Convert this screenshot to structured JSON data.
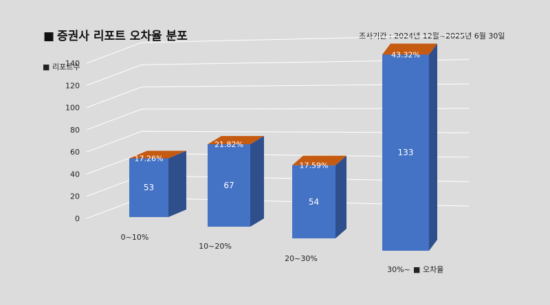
{
  "chart_data": {
    "type": "bar",
    "title": "증권사 리포트 오차율 분포",
    "subtitle": "조사기간 : 2024년 12월~2025년 6월 30일",
    "ylabel": "리포트수",
    "xlabel": "오차율",
    "categories": [
      "0~10%",
      "10~20%",
      "20~30%",
      "30%~"
    ],
    "values": [
      53,
      67,
      54,
      133
    ],
    "percent_labels": [
      "17.26%",
      "21.82%",
      "17.59%",
      "43.32%"
    ],
    "ylim": [
      0,
      140
    ],
    "yticks": [
      0,
      20,
      40,
      60,
      80,
      100,
      120,
      140
    ],
    "grid": true,
    "colors": {
      "front": "#4472c4",
      "side": "#2f4f8c",
      "top": "#c55a11",
      "background": "#dcdcdc"
    }
  }
}
